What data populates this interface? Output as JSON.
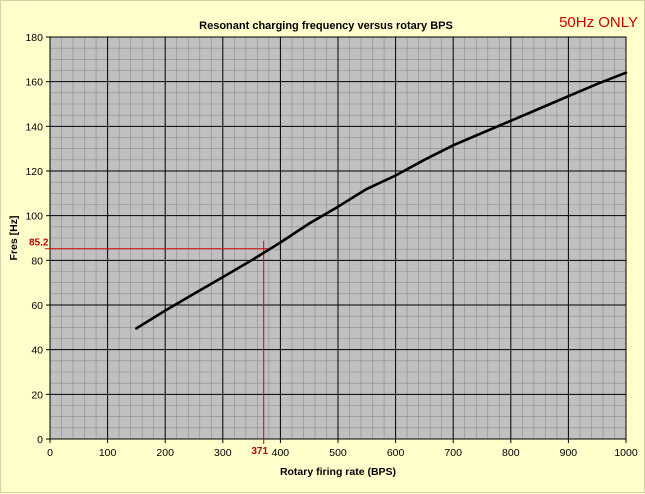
{
  "badge": "50Hz ONLY",
  "colors": {
    "background": "#ffffcc",
    "plot_area": "#c0c0c0",
    "minor_grid": "#8c8c8c",
    "major_grid": "#000000",
    "series": "#000000",
    "marker": "#d40000"
  },
  "chart_data": {
    "type": "line",
    "title": "Resonant charging frequency versus rotary BPS",
    "xlabel": "Rotary firing rate (BPS)",
    "ylabel": "Fres [Hz]",
    "xlim": [
      0,
      1000
    ],
    "ylim": [
      0,
      180
    ],
    "x_ticks": [
      0,
      100,
      200,
      300,
      400,
      500,
      600,
      700,
      800,
      900,
      1000
    ],
    "y_ticks": [
      0,
      20,
      40,
      60,
      80,
      100,
      120,
      140,
      160,
      180
    ],
    "grid": true,
    "series": [
      {
        "x": [
          150,
          200,
          250,
          300,
          350,
          400,
          450,
          500,
          550,
          600,
          650,
          700,
          750,
          800,
          850,
          900,
          950,
          1000
        ],
        "y": [
          49.5,
          57.5,
          65,
          72.5,
          80,
          88,
          96.5,
          104,
          112,
          118,
          125,
          131.5,
          137,
          142.5,
          148,
          153.5,
          159,
          164
        ]
      }
    ],
    "annotation": {
      "x": 371,
      "y": 85.2,
      "x_label": "371",
      "y_label": "85.2"
    }
  }
}
